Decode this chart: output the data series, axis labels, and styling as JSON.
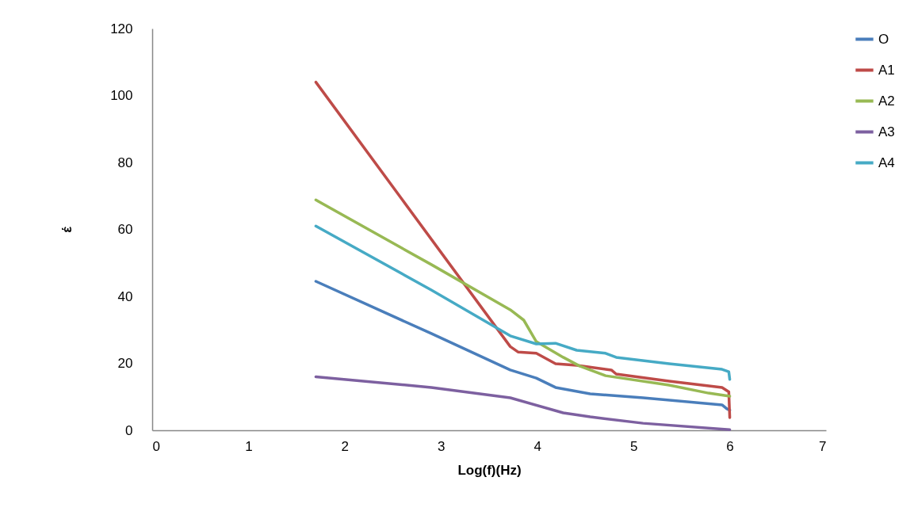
{
  "chart_data": {
    "type": "line",
    "xlabel": "Log(f)(Hz)",
    "ylabel": "έ",
    "xlim": [
      0,
      7
    ],
    "xticks": [
      0,
      1,
      2,
      3,
      4,
      5,
      6,
      7
    ],
    "ylim": [
      0,
      120
    ],
    "yticks": [
      0,
      20,
      40,
      60,
      80,
      100,
      120
    ],
    "grid": false,
    "legend": "top right",
    "marker": "none",
    "line_style": "solid",
    "series": [
      {
        "name": "O",
        "color": "#4a7ebb",
        "x": [
          1.7,
          2.9,
          3.72,
          3.99,
          4.19,
          4.55,
          5.1,
          5.92,
          5.97,
          6.0
        ],
        "values": [
          44.5,
          28.9,
          18,
          15.6,
          12.8,
          10.9,
          9.7,
          7.6,
          6.4,
          6.0
        ]
      },
      {
        "name": "A1",
        "color": "#be4b48",
        "x": [
          1.7,
          3.72,
          3.8,
          3.99,
          4.19,
          4.41,
          4.77,
          4.82,
          5.37,
          5.92,
          5.99,
          6.0
        ],
        "values": [
          104,
          25,
          23.4,
          23,
          19.9,
          19.4,
          18,
          16.8,
          14.7,
          12.8,
          11.5,
          3.8
        ]
      },
      {
        "name": "A2",
        "color": "#98b954",
        "x": [
          1.7,
          2.9,
          3.72,
          3.86,
          3.99,
          4.27,
          4.44,
          4.71,
          5.37,
          5.78,
          6.0
        ],
        "values": [
          68.8,
          49.5,
          36,
          32.9,
          26.5,
          21.8,
          19.2,
          16.3,
          13.5,
          11.1,
          10.2
        ]
      },
      {
        "name": "A3",
        "color": "#7d60a0",
        "x": [
          1.7,
          2.9,
          3.72,
          4.27,
          4.55,
          5.1,
          6.0
        ],
        "values": [
          16,
          12.8,
          9.7,
          5.2,
          4.0,
          2.1,
          0.2
        ]
      },
      {
        "name": "A4",
        "color": "#46aac5",
        "x": [
          1.7,
          2.9,
          3.72,
          3.99,
          4.19,
          4.41,
          4.71,
          4.82,
          5.37,
          5.92,
          5.99,
          6.0
        ],
        "values": [
          61,
          41.9,
          28.2,
          25.8,
          26,
          23.9,
          23,
          21.8,
          19.9,
          18.2,
          17.5,
          15.2
        ]
      }
    ]
  }
}
